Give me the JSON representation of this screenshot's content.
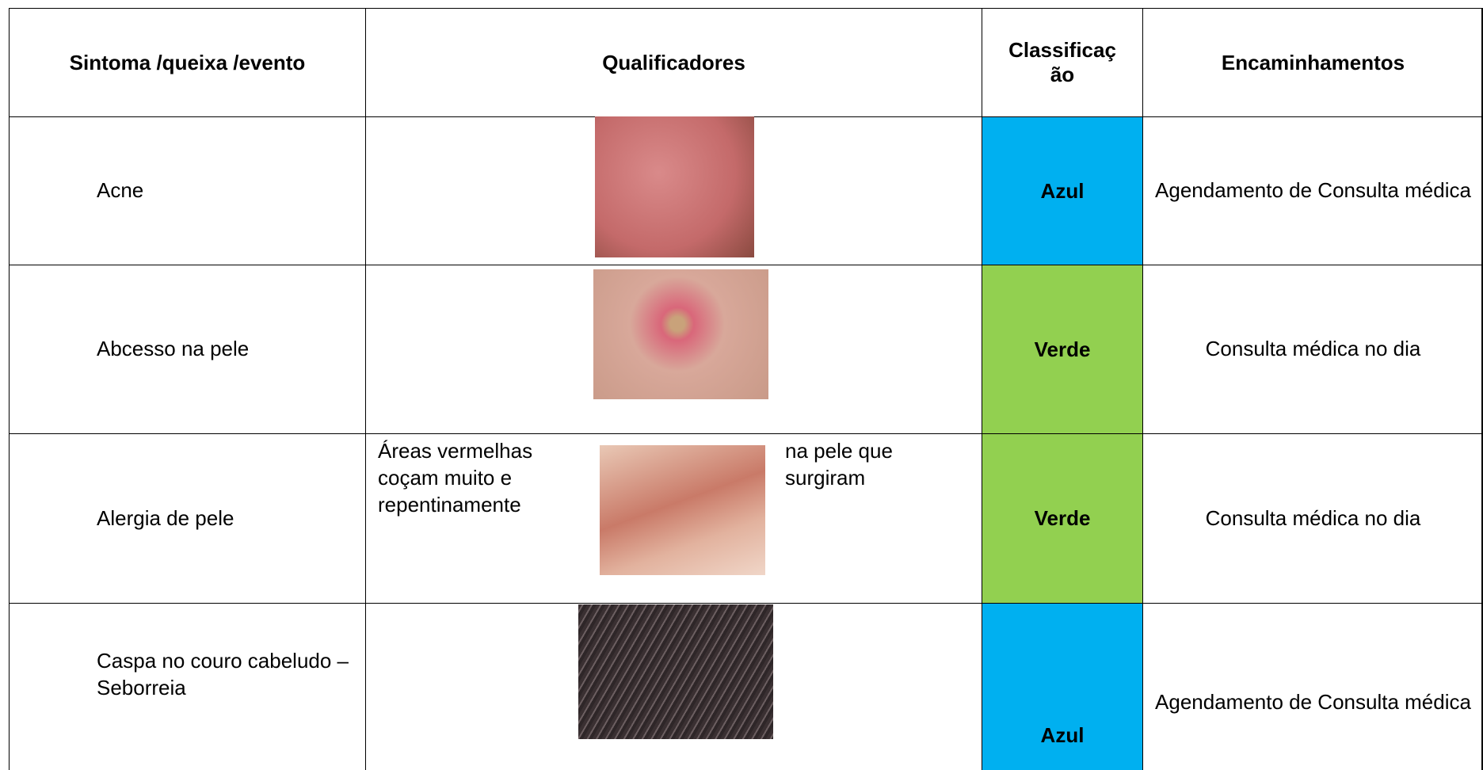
{
  "table": {
    "header": [
      "Sintoma /queixa /evento",
      "Qualificadores",
      "Classificaç ão",
      "Encaminhamentos"
    ],
    "rows": [
      {
        "symptom": "Acne",
        "classification": "Azul",
        "color": "#00b0f0",
        "referral": "Agendamento de Consulta médica"
      },
      {
        "symptom": "Abcesso na pele",
        "classification": "Verde",
        "color": "#92d050",
        "referral": "Consulta médica no dia"
      },
      {
        "symptom": "Alergia de pele",
        "qualifier_left": "Áreas vermelhas coçam muito e repentinamente",
        "qualifier_right": "na pele que surgiram",
        "classification": "Verde",
        "color": "#92d050",
        "referral": "Consulta médica no dia"
      },
      {
        "symptom": "Caspa no couro cabeludo – Seborreia",
        "classification": "Azul",
        "color": "#00b0f0",
        "referral": "Agendamento de Consulta médica"
      }
    ]
  }
}
